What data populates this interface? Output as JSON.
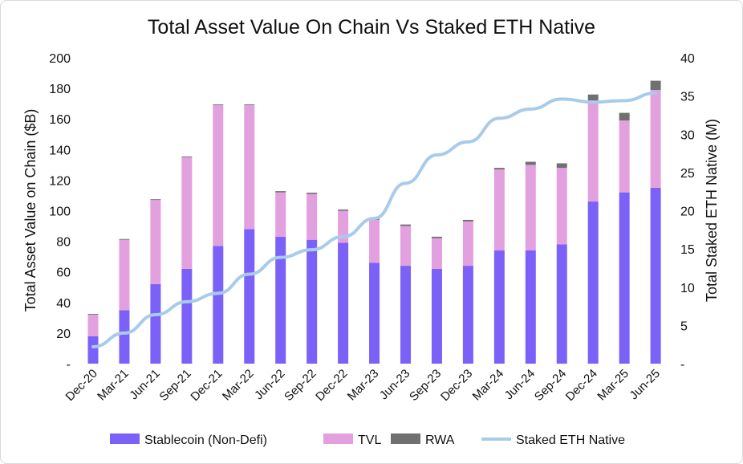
{
  "chart_data": {
    "type": "bar",
    "title": "Total Asset Value On Chain Vs Staked ETH Native",
    "ylabel": "Total Asset Value on Chain ($B)",
    "y2label": "Total Staked ETH Native (M)",
    "ylim": [
      0,
      200
    ],
    "y2lim": [
      0,
      40
    ],
    "yticks": [
      "-",
      "20",
      "40",
      "60",
      "80",
      "100",
      "120",
      "140",
      "160",
      "180",
      "200"
    ],
    "y2ticks": [
      "-",
      "5",
      "10",
      "15",
      "20",
      "25",
      "30",
      "35",
      "40"
    ],
    "grid": false,
    "legend_position": "bottom",
    "stacked": true,
    "categories": [
      "Dec-20",
      "Mar-21",
      "Jun-21",
      "Sep-21",
      "Dec-21",
      "Mar-22",
      "Jun-22",
      "Sep-22",
      "Dec-22",
      "Mar-23",
      "Jun-23",
      "Sep-23",
      "Dec-23",
      "Mar-24",
      "Jun-24",
      "Sep-24",
      "Dec-24",
      "Mar-25",
      "Jun-25"
    ],
    "series": [
      {
        "name": "Stablecoin (Non-Defi)",
        "kind": "bar",
        "axis": "left",
        "color": "#7B61F8",
        "values": [
          18,
          35,
          52,
          62,
          77,
          88,
          83,
          81,
          79,
          66,
          64,
          62,
          64,
          74,
          74,
          78,
          106,
          112,
          115
        ]
      },
      {
        "name": "TVL",
        "kind": "bar",
        "axis": "left",
        "color": "#E3A0DF",
        "values": [
          14,
          46,
          55,
          73,
          92,
          81,
          29,
          30,
          21,
          28,
          26,
          20,
          29,
          53,
          56,
          50,
          66,
          47,
          64
        ]
      },
      {
        "name": "RWA",
        "kind": "bar",
        "axis": "left",
        "color": "#707070",
        "values": [
          0.5,
          0.5,
          0.5,
          0.5,
          0.5,
          0.5,
          0.8,
          0.8,
          0.8,
          0.8,
          1,
          1,
          1,
          1,
          2,
          3,
          4,
          5,
          6
        ]
      },
      {
        "name": "Staked ETH Native",
        "kind": "line",
        "axis": "right",
        "color": "#A9CBEA",
        "values": [
          2.2,
          4.0,
          6.4,
          8.1,
          9.2,
          11.7,
          13.9,
          14.9,
          16.6,
          19.0,
          23.6,
          27.3,
          29.0,
          32.1,
          33.3,
          34.6,
          34.2,
          34.4,
          35.4
        ]
      }
    ]
  }
}
